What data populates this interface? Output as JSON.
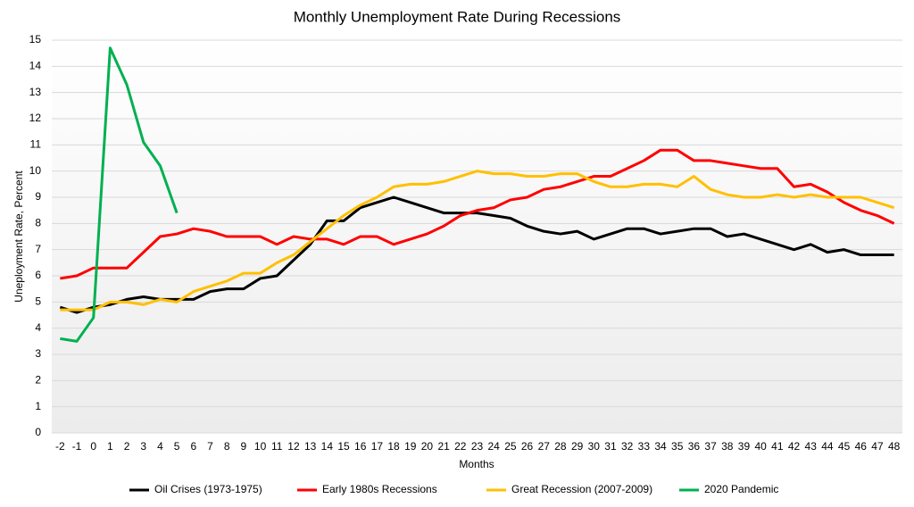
{
  "chart_data": {
    "type": "line",
    "title": "Monthly Unemployment Rate During Recessions",
    "xlabel": "Months",
    "ylabel": "Uneployment Rate, Percent",
    "x": [
      -2,
      -1,
      0,
      1,
      2,
      3,
      4,
      5,
      6,
      7,
      8,
      9,
      10,
      11,
      12,
      13,
      14,
      15,
      16,
      17,
      18,
      19,
      20,
      21,
      22,
      23,
      24,
      25,
      26,
      27,
      28,
      29,
      30,
      31,
      32,
      33,
      34,
      35,
      36,
      37,
      38,
      39,
      40,
      41,
      42,
      43,
      44,
      45,
      46,
      47,
      48
    ],
    "series": [
      {
        "name": "Oil Crises (1973-1975)",
        "color": "#000000",
        "values": [
          4.8,
          4.6,
          4.8,
          4.9,
          5.1,
          5.2,
          5.1,
          5.1,
          5.1,
          5.4,
          5.5,
          5.5,
          5.9,
          6.0,
          6.6,
          7.2,
          8.1,
          8.1,
          8.6,
          8.8,
          9.0,
          8.8,
          8.6,
          8.4,
          8.4,
          8.4,
          8.3,
          8.2,
          7.9,
          7.7,
          7.6,
          7.7,
          7.4,
          7.6,
          7.8,
          7.8,
          7.6,
          7.7,
          7.8,
          7.8,
          7.5,
          7.6,
          7.4,
          7.2,
          7.0,
          7.2,
          6.9,
          7.0,
          6.8,
          6.8,
          6.8
        ]
      },
      {
        "name": "Early 1980s Recessions",
        "color": "#ff0000",
        "values": [
          5.9,
          6.0,
          6.3,
          6.3,
          6.3,
          6.9,
          7.5,
          7.6,
          7.8,
          7.7,
          7.5,
          7.5,
          7.5,
          7.2,
          7.5,
          7.4,
          7.4,
          7.2,
          7.5,
          7.5,
          7.2,
          7.4,
          7.6,
          7.9,
          8.3,
          8.5,
          8.6,
          8.9,
          9.0,
          9.3,
          9.4,
          9.6,
          9.8,
          9.8,
          10.1,
          10.4,
          10.8,
          10.8,
          10.4,
          10.4,
          10.3,
          10.2,
          10.1,
          10.1,
          9.4,
          9.5,
          9.2,
          8.8,
          8.5,
          8.3,
          8.0
        ]
      },
      {
        "name": "Great Recession (2007-2009)",
        "color": "#ffc000",
        "values": [
          4.7,
          4.7,
          4.7,
          5.0,
          5.0,
          4.9,
          5.1,
          5.0,
          5.4,
          5.6,
          5.8,
          6.1,
          6.1,
          6.5,
          6.8,
          7.3,
          7.8,
          8.3,
          8.7,
          9.0,
          9.4,
          9.5,
          9.5,
          9.6,
          9.8,
          10.0,
          9.9,
          9.9,
          9.8,
          9.8,
          9.9,
          9.9,
          9.6,
          9.4,
          9.4,
          9.5,
          9.5,
          9.4,
          9.8,
          9.3,
          9.1,
          9.0,
          9.0,
          9.1,
          9.0,
          9.1,
          9.0,
          9.0,
          9.0,
          8.8,
          8.6
        ]
      },
      {
        "name": "2020 Pandemic",
        "color": "#00b050",
        "values": [
          3.6,
          3.5,
          4.4,
          14.7,
          13.3,
          11.1,
          10.2,
          8.4,
          null,
          null,
          null,
          null,
          null,
          null,
          null,
          null,
          null,
          null,
          null,
          null,
          null,
          null,
          null,
          null,
          null,
          null,
          null,
          null,
          null,
          null,
          null,
          null,
          null,
          null,
          null,
          null,
          null,
          null,
          null,
          null,
          null,
          null,
          null,
          null,
          null,
          null,
          null,
          null,
          null,
          null,
          null
        ]
      }
    ],
    "xlim": [
      -2.5,
      48.5
    ],
    "xticks": [
      -2,
      -1,
      0,
      1,
      2,
      3,
      4,
      5,
      6,
      7,
      8,
      9,
      10,
      11,
      12,
      13,
      14,
      15,
      16,
      17,
      18,
      19,
      20,
      21,
      22,
      23,
      24,
      25,
      26,
      27,
      28,
      29,
      30,
      31,
      32,
      33,
      34,
      35,
      36,
      37,
      38,
      39,
      40,
      41,
      42,
      43,
      44,
      45,
      46,
      47,
      48
    ],
    "ylim": [
      0,
      15
    ],
    "yticks": [
      0,
      1,
      2,
      3,
      4,
      5,
      6,
      7,
      8,
      9,
      10,
      11,
      12,
      13,
      14,
      15
    ],
    "grid": true,
    "legend": "bottom"
  }
}
